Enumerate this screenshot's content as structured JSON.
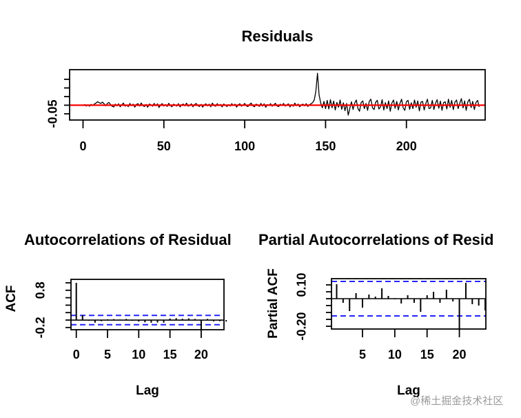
{
  "page": {
    "background": "#ffffff"
  },
  "watermark": {
    "text": "@稀土掘金技术社区",
    "color": "#9b9b9b"
  },
  "colors": {
    "axis": "#000000",
    "series_line": "#000000",
    "reference_line": "#ff0000",
    "confidence_band": "#2222ff"
  },
  "chart_data": [
    {
      "id": "residuals",
      "type": "line",
      "title": "Residuals",
      "xlabel": "",
      "ylabel": "",
      "x_ticks": [
        0,
        50,
        100,
        150,
        200
      ],
      "y_ticks": [
        -0.05,
        0,
        0.05,
        0.1,
        0.15
      ],
      "y_tick_labels_shown": [
        "-0.05"
      ],
      "xlim": [
        -8.3,
        248.7
      ],
      "ylim": [
        -0.086,
        0.206
      ],
      "grid": false,
      "reference_line_y": 0,
      "x_start": 0,
      "values": [
        -0.002,
        0.004,
        -0.005,
        0.003,
        -0.006,
        0.005,
        -0.002,
        0.007,
        0.012,
        0.02,
        0.015,
        0.01,
        0.018,
        0.008,
        -0.004,
        0.01,
        0.016,
        0.004,
        -0.006,
        -0.01,
        0.006,
        -0.004,
        0.008,
        -0.009,
        0.003,
        0.012,
        -0.006,
        0.001,
        -0.008,
        0.01,
        -0.003,
        0.006,
        -0.011,
        0.004,
        0.009,
        -0.005,
        0.013,
        -0.003,
        -0.008,
        0.005,
        -0.012,
        0.007,
        0.002,
        -0.006,
        0.01,
        -0.004,
        0.008,
        -0.013,
        0.002,
        0.009,
        -0.005,
        0.004,
        -0.007,
        0.011,
        -0.002,
        -0.009,
        0.006,
        0.001,
        -0.005,
        0.009,
        -0.01,
        0.003,
        0.007,
        -0.004,
        0.012,
        -0.006,
        -0.001,
        0.008,
        -0.009,
        0.004,
        0.01,
        -0.003,
        -0.007,
        0.005,
        -0.011,
        0.002,
        0.008,
        -0.004,
        0.006,
        -0.009,
        0.012,
        -0.002,
        -0.006,
        0.009,
        -0.003,
        0.005,
        -0.01,
        0.007,
        0.001,
        -0.008,
        0.004,
        -0.005,
        0.009,
        -0.002,
        0.006,
        -0.011,
        0.003,
        0.008,
        -0.006,
        0.001,
        0.01,
        -0.004,
        -0.008,
        0.005,
        0.012,
        -0.003,
        -0.009,
        0.006,
        0.002,
        -0.007,
        0.01,
        -0.005,
        0.008,
        -0.012,
        0.004,
        -0.001,
        0.009,
        -0.006,
        0.003,
        0.011,
        -0.004,
        -0.008,
        0.006,
        -0.002,
        0.01,
        -0.005,
        0.001,
        0.008,
        -0.01,
        0.004,
        -0.006,
        0.012,
        -0.003,
        0.007,
        -0.009,
        0.002,
        0.006,
        -0.004,
        0.009,
        -0.007,
        0.003,
        0.008,
        0.015,
        0.03,
        0.08,
        0.185,
        0.06,
        0.012,
        -0.015,
        0.022,
        -0.02,
        0.028,
        -0.022,
        0.032,
        -0.015,
        0.024,
        -0.028,
        0.016,
        -0.012,
        0.03,
        -0.024,
        0.014,
        -0.032,
        0.01,
        -0.058,
        -0.018,
        0.02,
        -0.025,
        0.012,
        0.03,
        -0.018,
        -0.035,
        0.015,
        0.025,
        -0.02,
        0.01,
        -0.03,
        0.022,
        0.035,
        -0.015,
        -0.025,
        0.018,
        0.028,
        -0.022,
        -0.01,
        0.032,
        -0.028,
        0.015,
        -0.02,
        0.025,
        -0.035,
        0.012,
        0.03,
        -0.018,
        0.022,
        -0.027,
        0.01,
        0.035,
        -0.015,
        -0.03,
        0.02,
        0.028,
        -0.024,
        0.014,
        -0.02,
        0.03,
        -0.012,
        0.025,
        -0.033,
        0.018,
        0.022,
        -0.028,
        0.01,
        0.035,
        -0.02,
        -0.015,
        0.028,
        -0.025,
        0.012,
        0.032,
        -0.018,
        0.024,
        -0.03,
        0.015,
        0.02,
        -0.022,
        0.035,
        -0.012,
        0.028,
        -0.026,
        0.018,
        0.03,
        -0.02,
        0.012,
        0.038,
        -0.016,
        0.025,
        -0.03,
        0.02,
        0.034,
        -0.014,
        0.022,
        -0.025,
        0.015,
        0.028,
        -0.01
      ]
    },
    {
      "id": "acf",
      "type": "bar",
      "title": "Autocorrelations of Residual",
      "xlabel": "Lag",
      "ylabel": "ACF",
      "x_ticks": [
        0,
        5,
        10,
        15,
        20
      ],
      "y_ticks": [
        1.0,
        0.8,
        0.6,
        0.4,
        0.2,
        0.0,
        -0.2
      ],
      "y_tick_labels_shown": [
        "0.8",
        "-0.2"
      ],
      "xlim": [
        -0.85,
        23.65
      ],
      "ylim": [
        -0.259,
        1.093
      ],
      "grid": false,
      "confidence_level": 0.125,
      "lag_start": 0,
      "values": [
        1.0,
        0.13,
        -0.02,
        -0.07,
        -0.03,
        0.02,
        0.025,
        0.015,
        0.03,
        -0.02,
        -0.04,
        -0.06,
        -0.07,
        -0.065,
        -0.07,
        0.04,
        0.05,
        0.035,
        0.045,
        0.03,
        -0.26,
        0.03,
        -0.035,
        -0.03,
        -0.04
      ]
    },
    {
      "id": "pacf",
      "type": "bar",
      "title": "Partial Autocorrelations of Resid",
      "xlabel": "Lag",
      "ylabel": "Partial ACF",
      "x_ticks": [
        5,
        10,
        15,
        20
      ],
      "y_ticks": [
        0.1,
        0.05,
        0,
        -0.05,
        -0.1,
        -0.15,
        -0.2
      ],
      "y_tick_labels_shown": [
        "0.10",
        "-0.20"
      ],
      "xlim": [
        0.2,
        24.1
      ],
      "ylim": [
        -0.22,
        0.145
      ],
      "grid": false,
      "confidence_level": 0.125,
      "lag_start": 1,
      "values": [
        0.105,
        -0.03,
        -0.09,
        0.04,
        -0.065,
        0.03,
        0.015,
        0.075,
        0.02,
        -0.005,
        -0.035,
        0.025,
        -0.03,
        -0.095,
        0.025,
        0.05,
        -0.03,
        0.065,
        -0.02,
        -0.23,
        0.115,
        -0.04,
        -0.05,
        -0.085
      ]
    }
  ]
}
